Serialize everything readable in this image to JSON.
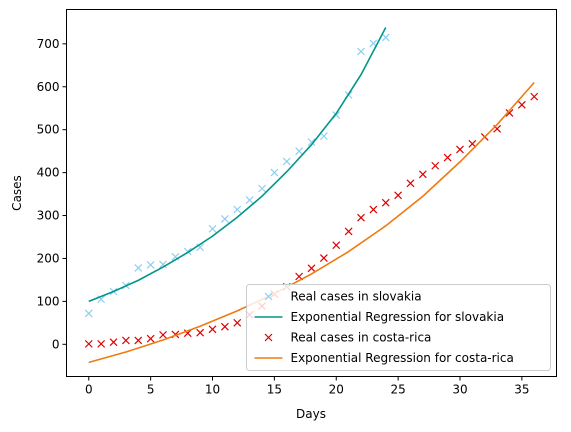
{
  "chart_data": {
    "type": "scatter",
    "xlabel": "Days",
    "ylabel": "Cases",
    "xlim": [
      -1.8,
      37.8
    ],
    "ylim": [
      -75,
      780
    ],
    "xticks": [
      0,
      5,
      10,
      15,
      20,
      25,
      30,
      35
    ],
    "yticks": [
      0,
      100,
      200,
      300,
      400,
      500,
      600,
      700
    ],
    "grid": false,
    "legend_position": "lower-right",
    "series": [
      {
        "name": "Real cases in slovakia",
        "kind": "scatter",
        "marker": "x",
        "color": "#8ecff0",
        "x": [
          0,
          1,
          2,
          3,
          4,
          5,
          6,
          7,
          8,
          9,
          10,
          11,
          12,
          13,
          14,
          15,
          16,
          17,
          18,
          19,
          20,
          21,
          22,
          23,
          24
        ],
        "y": [
          72,
          105,
          123,
          137,
          178,
          185,
          186,
          204,
          216,
          226,
          269,
          292,
          314,
          336,
          363,
          400,
          426,
          450,
          471,
          485,
          534,
          581,
          682,
          701,
          715
        ]
      },
      {
        "name": "Exponential Regression for slovakia",
        "kind": "line",
        "color": "#009688",
        "x": [
          0,
          2,
          4,
          6,
          8,
          10,
          12,
          14,
          16,
          18,
          20,
          22,
          24
        ],
        "y": [
          100,
          123,
          149,
          180,
          214,
          252,
          296,
          345,
          402,
          465,
          538,
          628,
          738
        ]
      },
      {
        "name": "Real cases in costa-rica",
        "kind": "scatter",
        "marker": "x",
        "color": "#dd0000",
        "x": [
          0,
          1,
          2,
          3,
          4,
          5,
          6,
          7,
          8,
          9,
          10,
          11,
          12,
          13,
          14,
          15,
          16,
          17,
          18,
          19,
          20,
          21,
          22,
          23,
          24,
          25,
          26,
          27,
          28,
          29,
          30,
          31,
          32,
          33,
          34,
          35,
          36
        ],
        "y": [
          1,
          1,
          5,
          9,
          9,
          13,
          22,
          23,
          26,
          27,
          35,
          41,
          50,
          69,
          89,
          117,
          134,
          158,
          177,
          201,
          231,
          263,
          295,
          314,
          330,
          347,
          375,
          396,
          416,
          435,
          454,
          467,
          483,
          502,
          539,
          558,
          577
        ]
      },
      {
        "name": "Exponential Regression for costa-rica",
        "kind": "line",
        "color": "#f07a10",
        "x": [
          0,
          3,
          6,
          9,
          12,
          15,
          18,
          21,
          24,
          27,
          30,
          33,
          36
        ],
        "y": [
          -42,
          -18,
          10,
          42,
          78,
          118,
          164,
          216,
          276,
          345,
          425,
          512,
          610
        ]
      }
    ]
  }
}
